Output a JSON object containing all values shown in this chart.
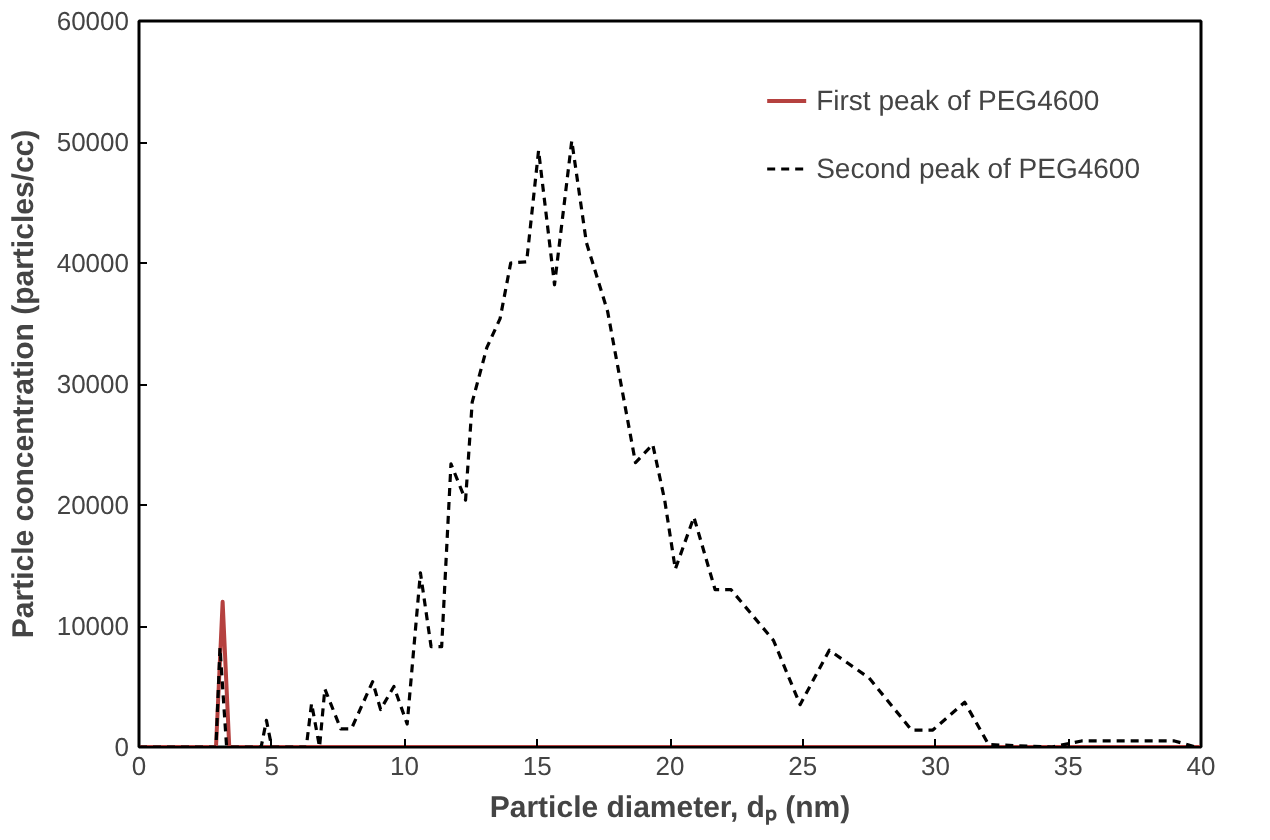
{
  "chart_data": {
    "type": "line",
    "xlabel": "Particle diameter, dₚ (nm)",
    "ylabel": "Particle concentration (particles/cc)",
    "xlim": [
      0,
      40
    ],
    "ylim": [
      0,
      60000
    ],
    "xticks": [
      0,
      5,
      10,
      15,
      20,
      25,
      30,
      35,
      40
    ],
    "yticks": [
      0,
      10000,
      20000,
      30000,
      40000,
      50000,
      60000
    ],
    "grid": false,
    "legend": "top right",
    "marker": "none",
    "series": [
      {
        "name": "First peak of PEG4600",
        "color": "#b5413f",
        "line_style": "solid",
        "x": [
          0,
          2.9,
          3.15,
          3.4,
          40
        ],
        "values": [
          0,
          0,
          12000,
          0,
          0
        ]
      },
      {
        "name": "Second peak of PEG4600",
        "color": "#000000",
        "line_style": "dashed",
        "x": [
          0,
          2.5,
          2.9,
          3.05,
          3.3,
          4.6,
          4.8,
          5.0,
          6.3,
          6.5,
          6.8,
          7.0,
          7.6,
          8.0,
          8.8,
          9.1,
          9.6,
          10.1,
          10.6,
          11.0,
          11.4,
          11.75,
          12.3,
          12.55,
          13.1,
          13.6,
          14.0,
          14.6,
          15.05,
          15.65,
          16.3,
          16.85,
          17.65,
          18.7,
          19.35,
          19.8,
          20.2,
          20.9,
          21.7,
          22.3,
          23.9,
          24.9,
          26.0,
          27.5,
          29.1,
          29.9,
          31.1,
          32.0,
          34.4,
          35.5,
          39.0,
          39.8
        ],
        "values": [
          0,
          0,
          0,
          8200,
          0,
          0,
          2200,
          0,
          0,
          3600,
          0,
          4800,
          1500,
          1500,
          5400,
          3100,
          5000,
          1900,
          14400,
          8300,
          8300,
          23400,
          20400,
          28500,
          33000,
          35400,
          40000,
          40100,
          49300,
          38200,
          50100,
          41700,
          36000,
          23500,
          25000,
          20400,
          14700,
          19000,
          13000,
          13000,
          8800,
          3500,
          8000,
          5700,
          1400,
          1400,
          3700,
          200,
          0,
          500,
          500,
          0
        ]
      }
    ]
  }
}
